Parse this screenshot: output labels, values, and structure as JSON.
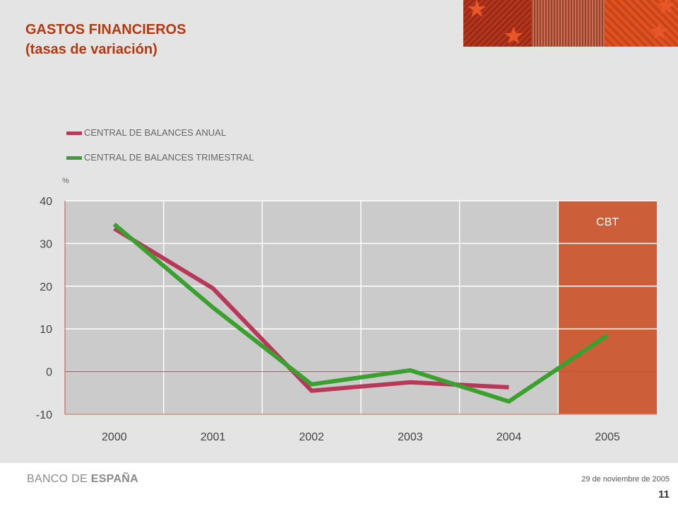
{
  "header": {
    "title_line1": "GASTOS FINANCIEROS",
    "title_line2": "(tasas de variación)"
  },
  "chart_data": {
    "type": "line",
    "categories": [
      "2000",
      "2001",
      "2002",
      "2003",
      "2004",
      "2005"
    ],
    "series": [
      {
        "name": "CENTRAL DE BALANCES ANUAL",
        "color": "#b8385a",
        "values": [
          33.5,
          19.5,
          -4.5,
          -2.5,
          -3.7,
          null
        ]
      },
      {
        "name": "CENTRAL DE BALANCES TRIMESTRAL",
        "color": "#3aa02e",
        "values": [
          34.5,
          15.0,
          -3.0,
          0.3,
          -7.0,
          8.5
        ]
      }
    ],
    "ylabel": "%",
    "ylim": [
      -10,
      40
    ],
    "yticks": [
      40,
      30,
      20,
      10,
      0,
      -10
    ],
    "grid": true,
    "legend_position": "top-left",
    "highlight": {
      "category": "2005",
      "label": "CBT",
      "color": "#cc5f3a"
    },
    "zero_line_color": "#c0563a"
  },
  "footer": {
    "brand_part1": "BANCO DE ",
    "brand_part2": "ESPAÑA",
    "date": "29 de noviembre de 2005",
    "page_number": "11"
  }
}
